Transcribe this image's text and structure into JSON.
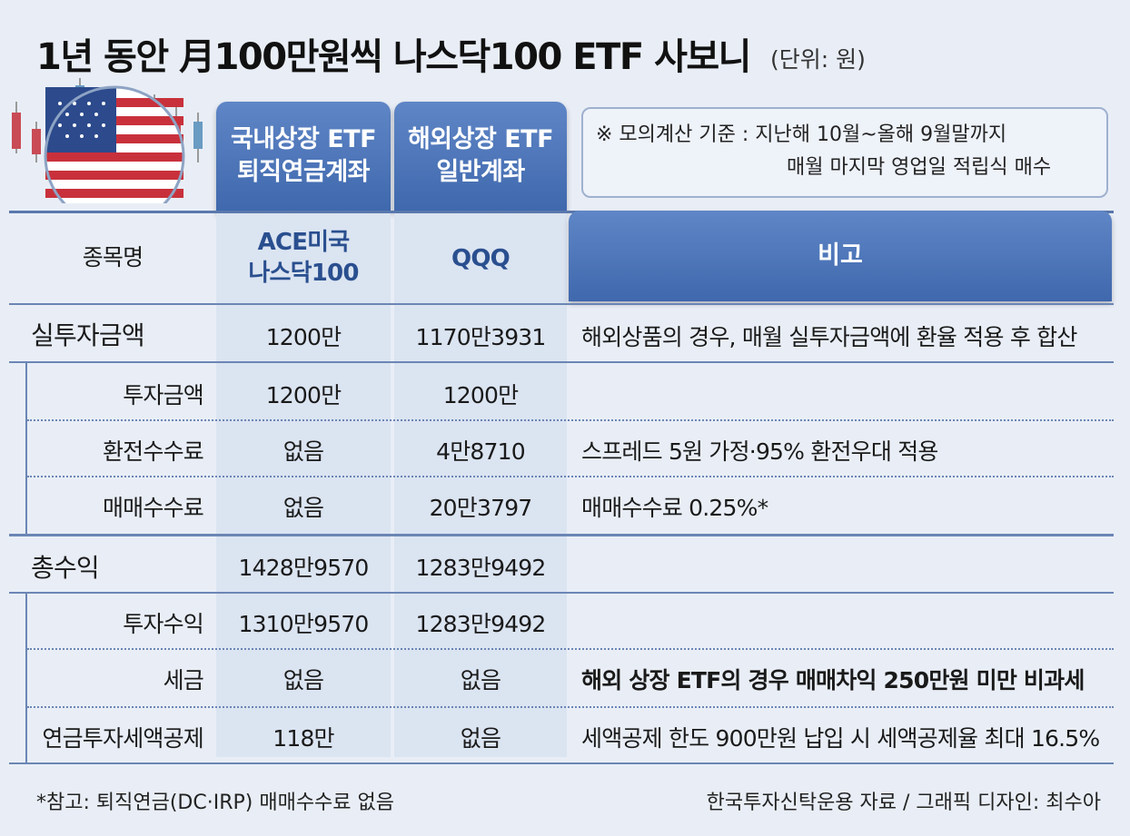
{
  "title": "1년 동안 月100만원씩 나스닥100 ETF 사보니",
  "unit": "(단위: 원)",
  "columns": {
    "domestic": {
      "line1": "국내상장 ETF",
      "line2": "퇴직연금계좌"
    },
    "overseas": {
      "line1": "해외상장 ETF",
      "line2": "일반계좌"
    }
  },
  "note": {
    "line1": "※ 모의계산 기준 : 지난해 10월~올해 9월말까지",
    "line2": "매월 마지막 영업일 적립식 매수"
  },
  "table": {
    "header": {
      "name_label": "종목명",
      "domestic_line1": "ACE미국",
      "domestic_line2": "나스닥100",
      "overseas": "QQQ",
      "remark": "비고"
    },
    "rows": [
      {
        "name": "실투자금액",
        "domestic": "1200만",
        "overseas": "1170만3931",
        "remark": "해외상품의 경우, 매월 실투자금액에 환율 적용 후 합산"
      },
      {
        "name": "투자금액",
        "domestic": "1200만",
        "overseas": "1200만",
        "remark": ""
      },
      {
        "name": "환전수수료",
        "domestic": "없음",
        "overseas": "4만8710",
        "remark": "스프레드 5원 가정·95% 환전우대 적용"
      },
      {
        "name": "매매수수료",
        "domestic": "없음",
        "overseas": "20만3797",
        "remark": "매매수수료 0.25%*"
      },
      {
        "name": "총수익",
        "domestic": "1428만9570",
        "overseas": "1283만9492",
        "remark": ""
      },
      {
        "name": "투자수익",
        "domestic": "1310만9570",
        "overseas": "1283만9492",
        "remark": ""
      },
      {
        "name": "세금",
        "domestic": "없음",
        "overseas": "없음",
        "remark": "해외 상장 ETF의 경우 매매차익 250만원 미만 비과세"
      },
      {
        "name": "연금투자세액공제",
        "domestic": "118만",
        "overseas": "없음",
        "remark": "세액공제 한도 900만원 납입 시 세액공제율 최대 16.5%"
      }
    ]
  },
  "footer": {
    "left": "*참고: 퇴직연금(DC·IRP) 매매수수료 없음",
    "right": "한국투자신탁운용 자료 / 그래픽 디자인: 최수아"
  },
  "colors": {
    "accent_blue": "#4a72b6",
    "column_shade": "#dbe4f1",
    "background": "#e9eef6"
  }
}
